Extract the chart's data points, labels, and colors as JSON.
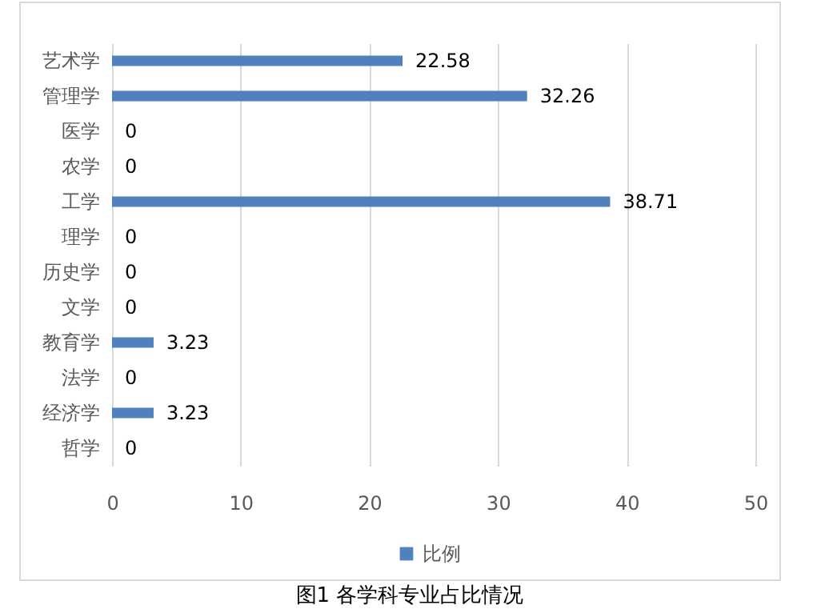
{
  "chart_data": {
    "type": "bar",
    "orientation": "horizontal",
    "title": "图1 各学科专业占比情况",
    "categories": [
      "艺术学",
      "管理学",
      "医学",
      "农学",
      "工学",
      "理学",
      "历史学",
      "文学",
      "教育学",
      "法学",
      "经济学",
      "哲学"
    ],
    "series": [
      {
        "name": "比例",
        "color": "#4f81bd",
        "values": [
          22.58,
          32.26,
          0,
          0,
          38.71,
          0,
          0,
          0,
          3.23,
          0,
          3.23,
          0
        ]
      }
    ],
    "xlim": [
      0,
      50
    ],
    "xticks": [
      0,
      10,
      20,
      30,
      40,
      50
    ],
    "grid": "x",
    "legend": "bottom",
    "data_labels": true
  }
}
